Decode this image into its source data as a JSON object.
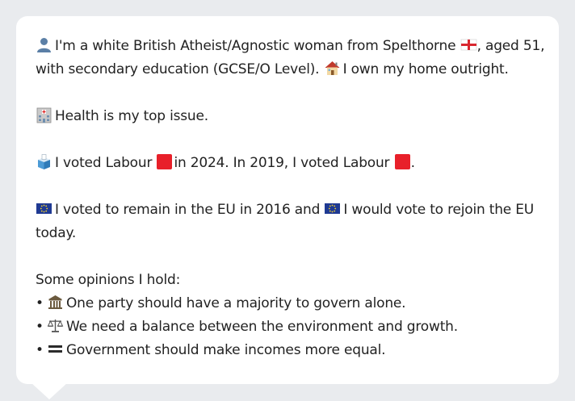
{
  "persona": {
    "intro_part1": "I'm a white British Atheist/Agnostic woman from Spelthorne",
    "intro_part2": ", aged 51,",
    "intro_line2_part1": "with secondary education (GCSE/O Level).",
    "intro_line2_part2": "I own my home outright.",
    "top_issue": "Health is my top issue.",
    "vote_part1": "I voted Labour",
    "vote_part2": "in 2024. In 2019, I voted Labour",
    "vote_part3": ".",
    "eu_part1": "I voted to remain in the EU in 2016 and",
    "eu_part2": "I would vote to rejoin the EU",
    "eu_line2": "today.",
    "opinions_heading": "Some opinions I hold:",
    "opinions": [
      {
        "bullet": "•",
        "icon": "classical-building-icon",
        "text": "One party should have a majority to govern alone."
      },
      {
        "bullet": "•",
        "icon": "balance-scale-icon",
        "text": "We need a balance between the environment and growth."
      },
      {
        "bullet": "•",
        "icon": "equals-icon",
        "text": "Government should make incomes more equal."
      }
    ]
  },
  "icons": {
    "person": "person-silhouette-icon",
    "flag": "england-flag-icon",
    "house": "house-icon",
    "hospital": "hospital-icon",
    "ballot": "ballot-box-icon",
    "party_color": "red-square-icon",
    "eu_flag": "eu-flag-icon"
  },
  "colors": {
    "background": "#e9ebee",
    "bubble": "#ffffff",
    "text": "#222222",
    "labour_red": "#e8202a",
    "eu_blue": "#1f3a93"
  }
}
